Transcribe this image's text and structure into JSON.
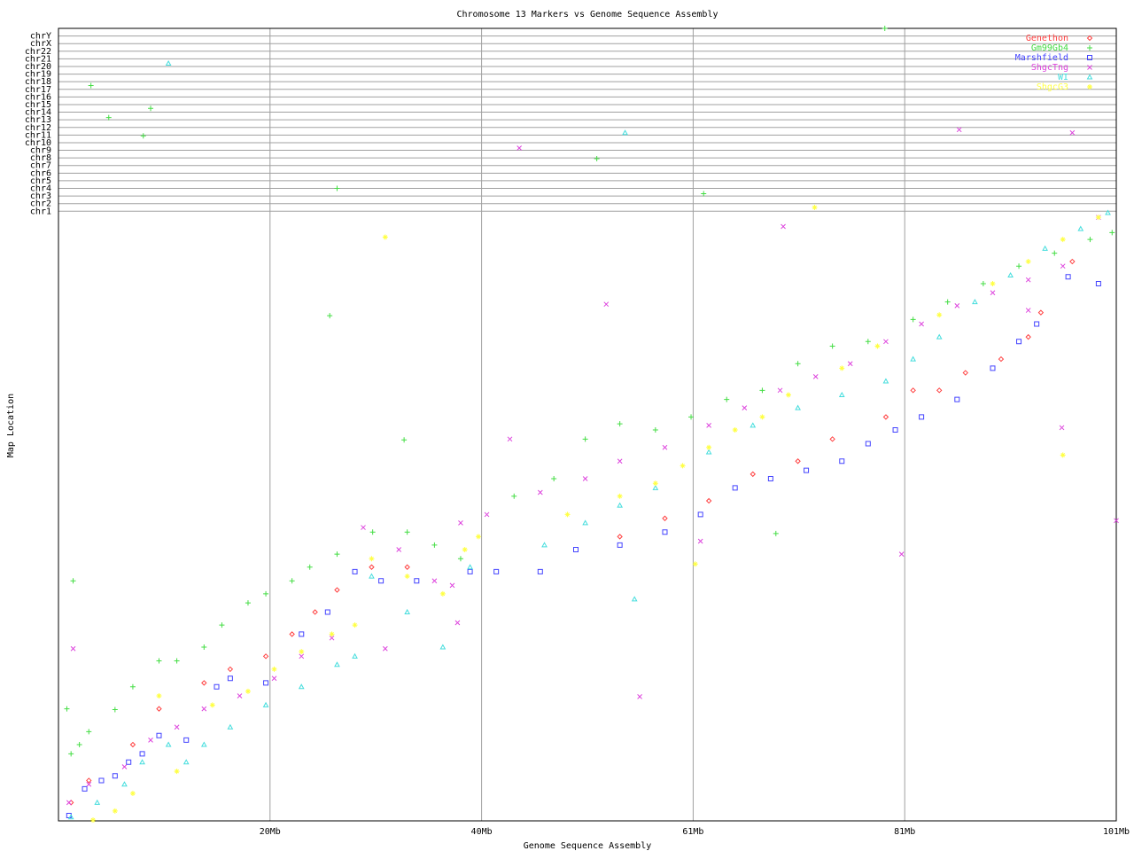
{
  "chart_data": {
    "type": "scatter",
    "title": "Chromosome 13 Markers vs Genome Sequence Assembly",
    "x_label": "Genome Sequence Assembly",
    "y_label": "Map Location",
    "xlim": [
      0,
      101
    ],
    "ylim": [
      0,
      104
    ],
    "xticks": [
      {
        "value": 20.2,
        "label": "20Mb"
      },
      {
        "value": 40.4,
        "label": "40Mb"
      },
      {
        "value": 60.6,
        "label": "61Mb"
      },
      {
        "value": 80.8,
        "label": "81Mb"
      },
      {
        "value": 101,
        "label": "101Mb"
      }
    ],
    "yticks": [
      {
        "value": 80,
        "label": "chr1"
      },
      {
        "value": 81,
        "label": "chr2"
      },
      {
        "value": 82,
        "label": "chr3"
      },
      {
        "value": 83,
        "label": "chr4"
      },
      {
        "value": 84,
        "label": "chr5"
      },
      {
        "value": 85,
        "label": "chr6"
      },
      {
        "value": 86,
        "label": "chr7"
      },
      {
        "value": 87,
        "label": "chr8"
      },
      {
        "value": 88,
        "label": "chr9"
      },
      {
        "value": 89,
        "label": "chr10"
      },
      {
        "value": 90,
        "label": "chr11"
      },
      {
        "value": 91,
        "label": "chr12"
      },
      {
        "value": 92,
        "label": "chr13"
      },
      {
        "value": 93,
        "label": "chr14"
      },
      {
        "value": 94,
        "label": "chr15"
      },
      {
        "value": 95,
        "label": "chr16"
      },
      {
        "value": 96,
        "label": "chr17"
      },
      {
        "value": 97,
        "label": "chr18"
      },
      {
        "value": 98,
        "label": "chr19"
      },
      {
        "value": 99,
        "label": "chr20"
      },
      {
        "value": 100,
        "label": "chr21"
      },
      {
        "value": 101,
        "label": "chr22"
      },
      {
        "value": 102,
        "label": "chrX"
      },
      {
        "value": 103,
        "label": "chrY"
      }
    ],
    "grid": true,
    "legend": "top-right",
    "series": [
      {
        "name": "Genethon",
        "color": "#ff4040",
        "marker": "diamond",
        "x": [
          1.2,
          2.9,
          7.1,
          9.6,
          13.9,
          16.4,
          19.8,
          22.3,
          24.5,
          26.6,
          29.9,
          33.3,
          53.6,
          57.9,
          62.1,
          66.3,
          70.6,
          73.9,
          79.0,
          81.6,
          84.1,
          86.6,
          90.0,
          92.6,
          93.8,
          96.8
        ],
        "y": [
          2.4,
          5.3,
          10.0,
          14.7,
          18.1,
          19.9,
          21.6,
          24.5,
          27.4,
          30.3,
          33.3,
          33.3,
          37.3,
          39.7,
          42.0,
          45.5,
          47.2,
          50.1,
          53.0,
          56.5,
          56.5,
          58.8,
          60.6,
          63.5,
          66.7,
          73.4
        ]
      },
      {
        "name": "Gm99Gb4",
        "color": "#44dd44",
        "marker": "plus",
        "x": [
          1.2,
          2.0,
          2.9,
          5.4,
          7.1,
          9.6,
          11.3,
          13.9,
          15.6,
          18.1,
          19.8,
          22.3,
          24.0,
          26.6,
          30.0,
          33.3,
          35.9,
          38.4,
          43.5,
          47.3,
          50.3,
          53.6,
          57.0,
          60.4,
          63.8,
          67.2,
          70.6,
          73.9,
          77.3,
          81.6,
          84.9,
          88.3,
          91.7,
          95.1,
          98.5,
          100.6,
          3.1,
          4.8,
          8.8,
          8.1,
          26.6,
          61.6,
          51.4,
          78.9,
          25.9,
          33.0,
          1.4,
          0.8,
          68.5
        ],
        "y": [
          8.8,
          10.0,
          11.7,
          14.6,
          17.6,
          21.0,
          21.0,
          22.8,
          25.7,
          28.6,
          29.8,
          31.5,
          33.3,
          35.0,
          37.9,
          37.9,
          36.2,
          34.4,
          42.6,
          44.9,
          50.1,
          52.1,
          51.3,
          53.0,
          55.3,
          56.5,
          60.0,
          62.3,
          62.9,
          65.8,
          68.1,
          70.5,
          72.8,
          74.5,
          76.3,
          77.2,
          96.5,
          92.3,
          93.5,
          89.9,
          83.0,
          82.3,
          86.9,
          104.0,
          66.3,
          50.0,
          31.5,
          14.7,
          37.7
        ]
      },
      {
        "name": "Marshfield",
        "color": "#4444ff",
        "marker": "square",
        "x": [
          1.0,
          2.5,
          4.1,
          5.4,
          6.7,
          8.0,
          9.6,
          12.2,
          15.1,
          16.4,
          19.8,
          23.2,
          25.7,
          28.3,
          30.8,
          34.2,
          39.3,
          41.8,
          46.0,
          49.4,
          53.6,
          57.9,
          61.3,
          64.6,
          68.0,
          71.4,
          74.8,
          77.3,
          79.9,
          82.4,
          85.8,
          89.2,
          91.7,
          93.4,
          96.4,
          99.3
        ],
        "y": [
          0.7,
          4.2,
          5.3,
          5.9,
          7.7,
          8.8,
          11.2,
          10.6,
          17.6,
          18.7,
          18.1,
          24.5,
          27.4,
          32.7,
          31.5,
          31.5,
          32.7,
          32.7,
          32.7,
          35.6,
          36.2,
          37.9,
          40.2,
          43.7,
          44.9,
          46.0,
          47.2,
          49.5,
          51.3,
          53.0,
          55.3,
          59.4,
          62.9,
          65.2,
          71.4,
          70.5
        ]
      },
      {
        "name": "ShgcTng",
        "color": "#dd44dd",
        "marker": "cross",
        "x": [
          1.0,
          2.9,
          6.3,
          8.8,
          11.3,
          13.9,
          17.3,
          20.6,
          23.2,
          26.1,
          29.1,
          32.5,
          35.9,
          37.6,
          38.4,
          40.9,
          43.1,
          46.0,
          50.3,
          53.6,
          57.9,
          62.1,
          65.5,
          68.9,
          72.3,
          75.6,
          79.0,
          82.4,
          85.8,
          89.2,
          92.6,
          95.9,
          99.3,
          92.6,
          44.0,
          52.3,
          86.0,
          96.8,
          69.2,
          80.5,
          101.0,
          95.8,
          55.5,
          1.4,
          31.2,
          38.1,
          61.3
        ],
        "y": [
          2.4,
          4.8,
          7.1,
          10.6,
          12.3,
          14.7,
          16.4,
          18.7,
          21.6,
          24.0,
          38.5,
          35.6,
          31.5,
          30.9,
          39.1,
          40.2,
          50.1,
          43.1,
          44.9,
          47.2,
          49.0,
          51.9,
          54.2,
          56.5,
          58.3,
          60.0,
          62.9,
          65.2,
          67.6,
          69.3,
          71.0,
          72.8,
          79.2,
          67.0,
          88.3,
          67.8,
          90.7,
          90.3,
          78.0,
          35.0,
          39.4,
          51.6,
          16.3,
          22.6,
          22.6,
          26.0,
          36.7
        ]
      },
      {
        "name": "WI",
        "color": "#44dddd",
        "marker": "triangle",
        "x": [
          1.2,
          3.7,
          6.3,
          8.0,
          10.5,
          12.2,
          13.9,
          16.4,
          19.8,
          23.2,
          26.6,
          28.3,
          29.9,
          33.3,
          36.7,
          39.3,
          46.4,
          50.3,
          53.6,
          57.0,
          62.1,
          66.3,
          70.6,
          74.8,
          79.0,
          81.6,
          84.1,
          87.5,
          90.9,
          94.2,
          97.6,
          100.2,
          10.5,
          54.1,
          55.0
        ],
        "y": [
          0.5,
          2.4,
          4.8,
          7.7,
          10.0,
          7.7,
          10.0,
          12.3,
          15.2,
          17.6,
          20.5,
          21.6,
          32.1,
          27.4,
          22.8,
          33.3,
          36.2,
          39.1,
          41.4,
          43.7,
          48.4,
          51.9,
          54.2,
          55.9,
          57.7,
          60.6,
          63.5,
          68.1,
          71.6,
          75.1,
          77.7,
          79.8,
          99.4,
          90.3,
          29.1
        ]
      },
      {
        "name": "ShgcG3",
        "color": "#ffff44",
        "marker": "star",
        "x": [
          3.3,
          5.4,
          7.1,
          9.6,
          11.3,
          14.7,
          18.1,
          20.6,
          23.2,
          26.1,
          28.3,
          29.9,
          33.3,
          36.7,
          38.8,
          40.1,
          48.6,
          53.6,
          57.0,
          59.6,
          62.1,
          64.6,
          67.2,
          69.7,
          74.8,
          78.2,
          84.1,
          89.2,
          92.6,
          95.9,
          99.3,
          31.2,
          72.2,
          60.8,
          95.9
        ],
        "y": [
          0.1,
          1.3,
          3.6,
          16.4,
          6.5,
          15.2,
          17.0,
          19.9,
          22.2,
          24.5,
          25.7,
          34.4,
          32.1,
          29.8,
          35.6,
          37.3,
          40.2,
          42.6,
          44.3,
          46.6,
          49.0,
          51.3,
          53.0,
          55.9,
          59.4,
          62.3,
          66.4,
          70.5,
          73.4,
          76.3,
          79.2,
          76.6,
          80.5,
          33.7,
          48.0
        ]
      }
    ]
  }
}
